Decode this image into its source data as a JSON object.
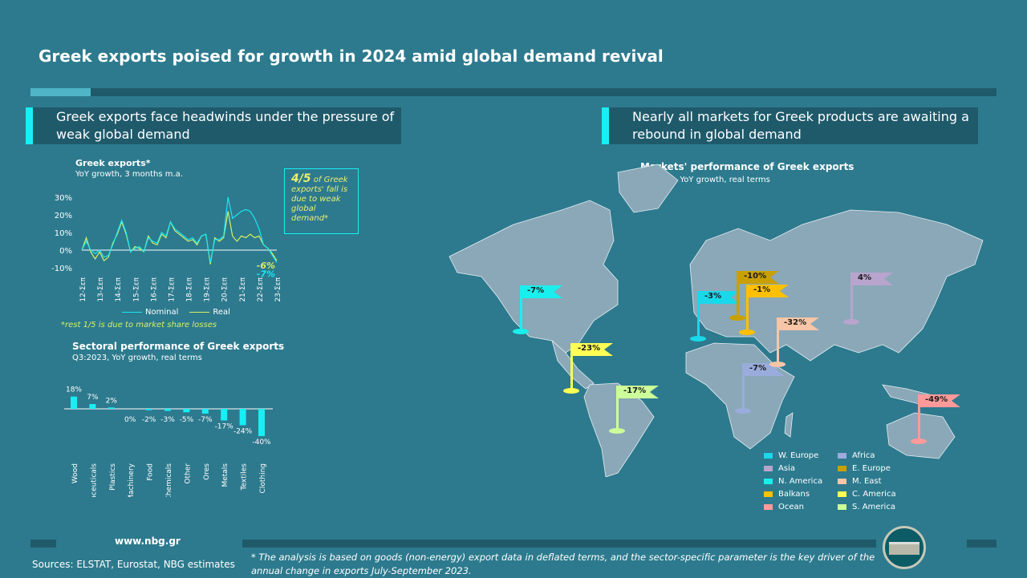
{
  "title": "Greek exports poised for growth in 2024 amid global demand revival",
  "left_header": "Greek exports face headwinds under the pressure of weak global demand",
  "right_header": "Nearly all markets for Greek products are awaiting a rebound in global demand",
  "callout": {
    "bold": "4/5",
    "text": "of Greek exports' fall is due to weak global demand*"
  },
  "footnote_rest": "*rest 1/5 is due to market share losses",
  "colors": {
    "bg": "#2d7a8e",
    "dark": "#1f5a6b",
    "nominal": "#19e6f0",
    "real": "#d8f060",
    "accent": "#19eef5"
  },
  "chart_data": [
    {
      "type": "line",
      "title": "Greek exports*",
      "subtitle": "YoY growth, 3 months m.a.",
      "ylim": [
        -10,
        30
      ],
      "yticks": [
        "30%",
        "20%",
        "10%",
        "0%",
        "-10%"
      ],
      "xticks": [
        "12-Σεπ",
        "13-Σεπ",
        "14-Σεπ",
        "15-Σεπ",
        "16-Σεπ",
        "17-Σεπ",
        "18-Σεπ",
        "19-Σεπ",
        "20-Σεπ",
        "21-Σεπ",
        "22-Σεπ",
        "23-Σεπ"
      ],
      "series": [
        {
          "name": "Nominal",
          "color": "#19e6f0",
          "end_label": "-7%",
          "values": [
            0,
            5,
            0,
            -2,
            0,
            -4,
            -3,
            3,
            10,
            17,
            10,
            -1,
            1,
            2,
            -1,
            7,
            5,
            4,
            10,
            8,
            16,
            12,
            10,
            8,
            6,
            7,
            4,
            8,
            9,
            -7,
            6,
            6,
            8,
            30,
            18,
            20,
            22,
            23,
            22,
            18,
            12,
            3,
            1,
            -3,
            -7
          ]
        },
        {
          "name": "Real",
          "color": "#d8f060",
          "end_label": "-6%",
          "values": [
            0,
            7,
            -1,
            -5,
            -1,
            -6,
            -4,
            4,
            9,
            16,
            9,
            -1,
            2,
            1,
            -1,
            8,
            4,
            3,
            9,
            7,
            16,
            11,
            9,
            7,
            5,
            6,
            3,
            8,
            9,
            -8,
            7,
            5,
            7,
            22,
            8,
            5,
            8,
            7,
            9,
            7,
            8,
            3,
            1,
            -2,
            -6
          ]
        }
      ]
    },
    {
      "type": "bar",
      "title": "Sectoral performance of Greek exports",
      "subtitle": "Q3:2023, YoY growth, real terms",
      "categories": [
        "Wood",
        "Pharmaceuticals",
        "Plastics",
        "Machinery",
        "Food",
        "Chemicals",
        "Other",
        "Ores",
        "Metals",
        "Textiles",
        "Clothing"
      ],
      "values": [
        18,
        7,
        2,
        0,
        -2,
        -3,
        -5,
        -7,
        -17,
        -24,
        -40
      ],
      "labels": [
        "18%",
        "7%",
        "2%",
        "0%",
        "-2%",
        "-3%",
        "-5%",
        "-7%",
        "-17%",
        "-24%",
        "-40%"
      ]
    },
    {
      "type": "map",
      "title": "Markets' performance of Greek exports",
      "subtitle": "Q3:2023, YoY growth, real terms",
      "markets": [
        {
          "name": "W. Europe",
          "label": "-3%",
          "color": "#19d8ea"
        },
        {
          "name": "Asia",
          "label": "4%",
          "color": "#b8a4cc"
        },
        {
          "name": "N. America",
          "label": "-7%",
          "color": "#19f0ee"
        },
        {
          "name": "Balkans",
          "label": "-1%",
          "color": "#ffc000"
        },
        {
          "name": "Ocean",
          "label": "-49%",
          "color": "#ff9a9a"
        },
        {
          "name": "Africa",
          "label": "-7%",
          "color": "#9aacdc"
        },
        {
          "name": "E. Europe",
          "label": "-10%",
          "color": "#c9a000"
        },
        {
          "name": "M. East",
          "label": "-32%",
          "color": "#f8c6a6"
        },
        {
          "name": "C. America",
          "label": "-23%",
          "color": "#ffff55"
        },
        {
          "name": "S. America",
          "label": "-17%",
          "color": "#ccff99"
        }
      ]
    }
  ],
  "footer": {
    "site": "www.nbg.gr",
    "sources": "Sources: ELSTAT, Eurostat, NBG estimates",
    "note": "* The analysis is based on goods (non-energy) export data in deflated terms, and the sector-specific parameter is the key driver of the annual change in exports July-September 2023."
  }
}
